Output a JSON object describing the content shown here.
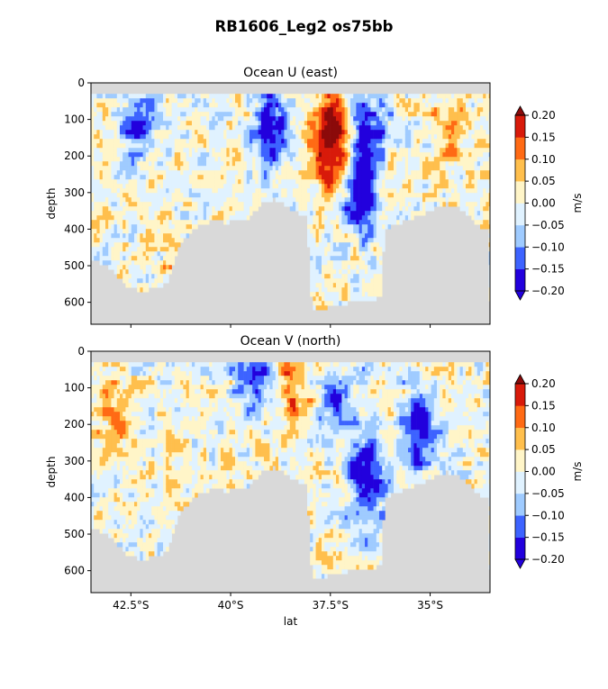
{
  "figure": {
    "suptitle": "RB1606_Leg2 os75bb"
  },
  "chart_data": [
    {
      "type": "heatmap",
      "title": "Ocean U (east)",
      "xlabel": "",
      "ylabel": "depth",
      "x_ticks": [
        "42.5°S",
        "40°S",
        "37.5°S",
        "35°S"
      ],
      "y_ticks": [
        "0",
        "100",
        "200",
        "300",
        "400",
        "500",
        "600"
      ],
      "xlim": [
        -43.5,
        -33.5
      ],
      "ylim": [
        660,
        0
      ],
      "colorbar": {
        "label": "m/s",
        "ticks": [
          "0.20",
          "0.15",
          "0.10",
          "0.05",
          "0.00",
          "−0.05",
          "−0.10",
          "−0.15",
          "−0.20"
        ],
        "levels": [
          -0.2,
          -0.15,
          -0.1,
          -0.05,
          0,
          0.05,
          0.1,
          0.15,
          0.2
        ],
        "colors": [
          "#2200dd",
          "#3d63ff",
          "#9fcbff",
          "#e0f2ff",
          "#fff5c8",
          "#ffbf4d",
          "#ff6a14",
          "#d81a0a"
        ],
        "extend_low": "#2200dd",
        "extend_high": "#8b0a0a"
      },
      "missing_color": "#d9d9d9",
      "data_top_depth": 30,
      "features": [
        {
          "lat": -37.5,
          "depth": 120,
          "value": 0.22
        },
        {
          "lat": -37.3,
          "depth": 230,
          "value": 0.15
        },
        {
          "lat": -36.8,
          "depth": 300,
          "value": -0.21
        },
        {
          "lat": -36.6,
          "depth": 150,
          "value": -0.17
        },
        {
          "lat": -39.0,
          "depth": 130,
          "value": -0.2
        },
        {
          "lat": -42.3,
          "depth": 100,
          "value": -0.12
        },
        {
          "lat": -34.5,
          "depth": 120,
          "value": 0.1
        }
      ]
    },
    {
      "type": "heatmap",
      "title": "Ocean V (north)",
      "xlabel": "lat",
      "ylabel": "depth",
      "x_ticks": [
        "42.5°S",
        "40°S",
        "37.5°S",
        "35°S"
      ],
      "y_ticks": [
        "0",
        "100",
        "200",
        "300",
        "400",
        "500",
        "600"
      ],
      "xlim": [
        -43.5,
        -33.5
      ],
      "ylim": [
        660,
        0
      ],
      "colorbar": {
        "label": "m/s",
        "ticks": [
          "0.20",
          "0.15",
          "0.10",
          "0.05",
          "0.00",
          "−0.05",
          "−0.10",
          "−0.15",
          "−0.20"
        ],
        "levels": [
          -0.2,
          -0.15,
          -0.1,
          -0.05,
          0,
          0.05,
          0.1,
          0.15,
          0.2
        ],
        "colors": [
          "#2200dd",
          "#3d63ff",
          "#9fcbff",
          "#e0f2ff",
          "#fff5c8",
          "#ffbf4d",
          "#ff6a14",
          "#d81a0a"
        ],
        "extend_low": "#2200dd",
        "extend_high": "#8b0a0a"
      },
      "missing_color": "#d9d9d9",
      "data_top_depth": 30,
      "features": [
        {
          "lat": -36.6,
          "depth": 350,
          "value": -0.21
        },
        {
          "lat": -35.3,
          "depth": 220,
          "value": -0.18
        },
        {
          "lat": -39.4,
          "depth": 60,
          "value": -0.17
        },
        {
          "lat": -37.3,
          "depth": 150,
          "value": -0.12
        },
        {
          "lat": -43.0,
          "depth": 150,
          "value": 0.1
        },
        {
          "lat": -38.5,
          "depth": 80,
          "value": 0.12
        }
      ]
    }
  ]
}
